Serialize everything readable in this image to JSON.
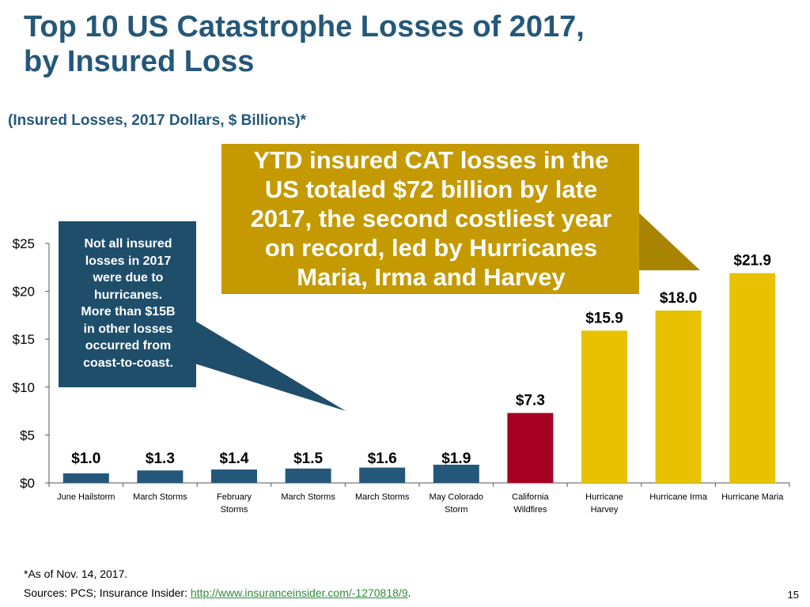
{
  "slide": {
    "title_line1": "Top 10 US Catastrophe Losses of 2017,",
    "title_line2": "by Insured Loss",
    "subtitle": "(Insured Losses, 2017 Dollars, $ Billions)*",
    "page_number": "15"
  },
  "callouts": {
    "left_lines": [
      "Not all insured",
      "losses in 2017",
      "were due to",
      "hurricanes.",
      "More than $15B",
      "in other losses",
      "occurred from",
      "coast-to-coast."
    ],
    "top_lines": [
      "YTD insured CAT losses in the",
      "US totaled $72 billion by late",
      "2017, the second costliest year",
      "on record, led by Hurricanes",
      "Maria, Irma and Harvey"
    ]
  },
  "footnotes": {
    "asof": "*As of Nov. 14, 2017.",
    "sources_prefix": "Sources: PCS; Insurance Insider: ",
    "sources_link": "http://www.insuranceinsider.com/-1270818/9",
    "sources_suffix": "."
  },
  "colors": {
    "title": "#24587a",
    "bar_other": "#24587a",
    "bar_wildfire": "#a50021",
    "bar_hurricane": "#e8c200",
    "callout_left": "#1f4e6b",
    "callout_top": "#c49a00"
  },
  "chart_data": {
    "type": "bar",
    "categories": [
      [
        "June Hailstorm"
      ],
      [
        "March Storms"
      ],
      [
        "February",
        "Storms"
      ],
      [
        "March Storms"
      ],
      [
        "March Storms"
      ],
      [
        "May Colorado",
        "Storm"
      ],
      [
        "California",
        "Wildfires"
      ],
      [
        "Hurricane",
        "Harvey"
      ],
      [
        "Hurricane Irma"
      ],
      [
        "Hurricane Maria"
      ]
    ],
    "values": [
      1.0,
      1.3,
      1.4,
      1.5,
      1.6,
      1.9,
      7.3,
      15.9,
      18.0,
      21.9
    ],
    "data_labels": [
      "$1.0",
      "$1.3",
      "$1.4",
      "$1.5",
      "$1.6",
      "$1.9",
      "$7.3",
      "$15.9",
      "$18.0",
      "$21.9"
    ],
    "bar_groups": [
      "other",
      "other",
      "other",
      "other",
      "other",
      "other",
      "wildfire",
      "hurricane",
      "hurricane",
      "hurricane"
    ],
    "y_ticks": [
      0,
      5,
      10,
      15,
      20,
      25
    ],
    "y_tick_labels": [
      "$0",
      "$5",
      "$10",
      "$15",
      "$20",
      "$25"
    ],
    "ylim": [
      0,
      25
    ],
    "grid": false,
    "legend": "none"
  }
}
